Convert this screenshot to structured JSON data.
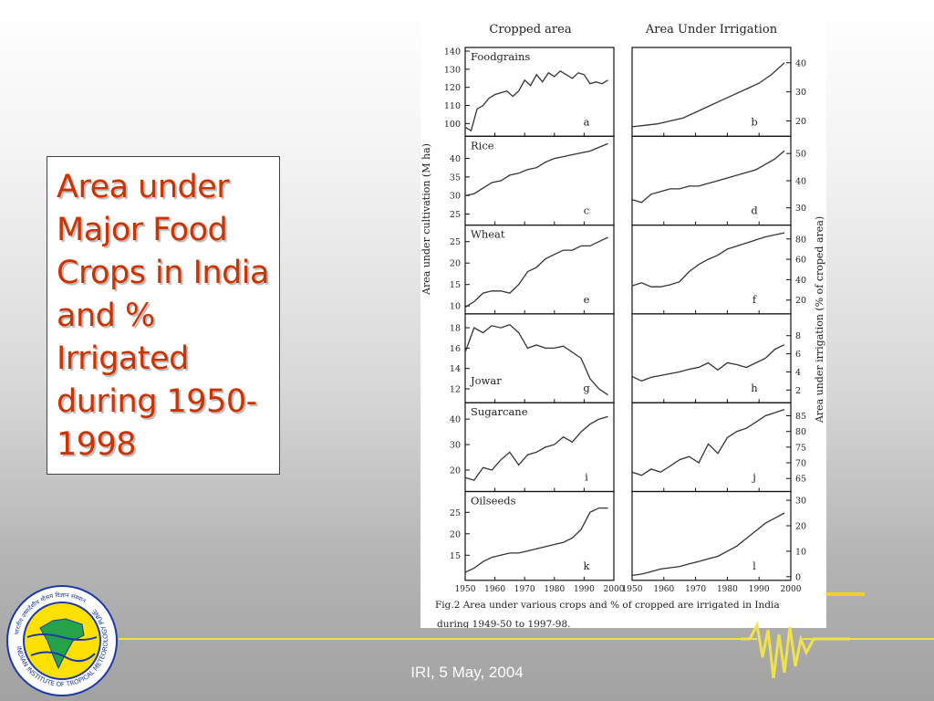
{
  "slide": {
    "title": "Area under Major Food Crops in India and % Irrigated during 1950-1998",
    "footer": "IRI, 5 May, 2004"
  },
  "figure": {
    "col_left_title": "Cropped area",
    "col_right_title": "Area Under Irrigation",
    "ylabel_left": "Area under cultivation (M ha)",
    "ylabel_right": "Area under irrigation (% of croped area)",
    "caption_line1": "Fig.2 Area under various crops and % of cropped are irrigated in India",
    "caption_line2": "during 1949-50 to 1997-98.",
    "x_ticks": [
      "1950",
      "1960",
      "1970",
      "1980",
      "1990",
      "2000"
    ]
  },
  "logo": {
    "text_ring": "INDIAN INSTITUTE OF TROPICAL METEOROLOGY PUNE",
    "hindi_ring": "भारतीय उष्णदेशीय मौसम विज्ञान संस्थान"
  },
  "colors": {
    "title": "#cc3300",
    "line": "#333333",
    "accent": "#f2e24a"
  },
  "chart_data": [
    {
      "type": "line",
      "panel": "a",
      "crop": "Foodgrains",
      "measure": "Cropped area",
      "ylabel": "Area under cultivation (M ha)",
      "ylim": [
        95,
        140
      ],
      "yticks": [
        100,
        110,
        120,
        130,
        140
      ],
      "x": [
        1950,
        1952,
        1954,
        1956,
        1958,
        1960,
        1962,
        1964,
        1966,
        1968,
        1970,
        1972,
        1974,
        1976,
        1978,
        1980,
        1982,
        1984,
        1986,
        1988,
        1990,
        1992,
        1994,
        1996,
        1998
      ],
      "values": [
        98,
        96,
        108,
        110,
        114,
        116,
        117,
        118,
        115,
        118,
        124,
        121,
        127,
        123,
        128,
        126,
        129,
        127,
        125,
        128,
        127,
        122,
        123,
        122,
        124
      ]
    },
    {
      "type": "line",
      "panel": "b",
      "crop": "Foodgrains",
      "measure": "Area under irrigation",
      "ylabel": "Area under irrigation (% of croped area)",
      "ylim": [
        16,
        44
      ],
      "yticks": [
        20,
        30,
        40
      ],
      "x": [
        1950,
        1954,
        1958,
        1962,
        1966,
        1970,
        1974,
        1978,
        1982,
        1986,
        1990,
        1994,
        1998
      ],
      "values": [
        18,
        18.5,
        19,
        20,
        21,
        23,
        25,
        27,
        29,
        31,
        33,
        36,
        40
      ]
    },
    {
      "type": "line",
      "panel": "c",
      "crop": "Rice",
      "measure": "Cropped area",
      "ylim": [
        23,
        45
      ],
      "yticks": [
        25,
        30,
        35,
        40
      ],
      "x": [
        1950,
        1953,
        1956,
        1959,
        1962,
        1965,
        1968,
        1971,
        1974,
        1977,
        1980,
        1983,
        1986,
        1989,
        1992,
        1995,
        1998
      ],
      "values": [
        30,
        30.5,
        32,
        33.5,
        34,
        35.5,
        36,
        37,
        37.5,
        39,
        40,
        40.5,
        41,
        41.5,
        42,
        43,
        44
      ]
    },
    {
      "type": "line",
      "panel": "d",
      "crop": "Rice",
      "measure": "Area under irrigation",
      "ylim": [
        25,
        55
      ],
      "yticks": [
        30,
        40,
        50
      ],
      "x": [
        1950,
        1953,
        1956,
        1959,
        1962,
        1965,
        1968,
        1971,
        1974,
        1977,
        1980,
        1983,
        1986,
        1989,
        1992,
        1995,
        1998
      ],
      "values": [
        33,
        32,
        35,
        36,
        37,
        37,
        38,
        38,
        39,
        40,
        41,
        42,
        43,
        44,
        46,
        48,
        51
      ]
    },
    {
      "type": "line",
      "panel": "e",
      "crop": "Wheat",
      "measure": "Cropped area",
      "ylim": [
        9,
        28
      ],
      "yticks": [
        10,
        15,
        20,
        25
      ],
      "x": [
        1950,
        1953,
        1956,
        1959,
        1962,
        1965,
        1968,
        1971,
        1974,
        1977,
        1980,
        1983,
        1986,
        1989,
        1992,
        1995,
        1998
      ],
      "values": [
        9.7,
        11,
        13,
        13.5,
        13.5,
        13,
        15,
        18,
        19,
        21,
        22,
        23,
        23,
        24,
        24,
        25,
        26
      ]
    },
    {
      "type": "line",
      "panel": "f",
      "crop": "Wheat",
      "measure": "Area under irrigation",
      "ylim": [
        10,
        90
      ],
      "yticks": [
        20,
        40,
        60,
        80
      ],
      "x": [
        1950,
        1953,
        1956,
        1959,
        1962,
        1965,
        1968,
        1971,
        1974,
        1977,
        1980,
        1983,
        1986,
        1989,
        1992,
        1995,
        1998
      ],
      "values": [
        34,
        37,
        33,
        33,
        35,
        38,
        48,
        55,
        60,
        64,
        70,
        73,
        76,
        79,
        82,
        84,
        86
      ]
    },
    {
      "type": "line",
      "panel": "g",
      "crop": "Jowar",
      "measure": "Cropped area",
      "ylim": [
        11,
        19
      ],
      "yticks": [
        12,
        14,
        16,
        18
      ],
      "x": [
        1950,
        1953,
        1956,
        1959,
        1962,
        1965,
        1968,
        1971,
        1974,
        1977,
        1980,
        1983,
        1986,
        1989,
        1992,
        1995,
        1998
      ],
      "values": [
        15.6,
        18,
        17.5,
        18.2,
        18,
        18.3,
        17.5,
        16,
        16.3,
        16,
        16,
        16.2,
        15.6,
        15,
        13,
        12,
        11.4
      ]
    },
    {
      "type": "line",
      "panel": "h",
      "crop": "Jowar",
      "measure": "Area under irrigation",
      "ylim": [
        1,
        10
      ],
      "yticks": [
        2,
        4,
        6,
        8
      ],
      "x": [
        1950,
        1953,
        1956,
        1959,
        1962,
        1965,
        1968,
        1971,
        1974,
        1977,
        1980,
        1983,
        1986,
        1989,
        1992,
        1995,
        1998
      ],
      "values": [
        3.5,
        3,
        3.4,
        3.6,
        3.8,
        4,
        4.3,
        4.5,
        5,
        4.2,
        5,
        4.8,
        4.5,
        5,
        5.5,
        6.5,
        7
      ]
    },
    {
      "type": "line",
      "panel": "i",
      "crop": "Sugarcane",
      "measure": "Cropped area",
      "ylim": [
        13,
        45
      ],
      "yticks": [
        20,
        30,
        40
      ],
      "x": [
        1950,
        1953,
        1956,
        1959,
        1962,
        1965,
        1968,
        1971,
        1974,
        1977,
        1980,
        1983,
        1986,
        1989,
        1992,
        1995,
        1998
      ],
      "values": [
        17,
        16,
        21,
        20,
        24,
        27,
        22,
        26,
        27,
        29,
        30,
        33,
        31,
        35,
        38,
        40,
        41
      ]
    },
    {
      "type": "line",
      "panel": "j",
      "crop": "Sugarcane",
      "measure": "Area under irrigation",
      "ylim": [
        62,
        88
      ],
      "yticks": [
        65,
        70,
        75,
        80,
        85
      ],
      "x": [
        1950,
        1953,
        1956,
        1959,
        1962,
        1965,
        1968,
        1971,
        1974,
        1977,
        1980,
        1983,
        1986,
        1989,
        1992,
        1995,
        1998
      ],
      "values": [
        67,
        66,
        68,
        67,
        69,
        71,
        72,
        70,
        76,
        73,
        78,
        80,
        81,
        83,
        85,
        86,
        87
      ]
    },
    {
      "type": "line",
      "panel": "k",
      "crop": "Oilseeds",
      "measure": "Cropped area",
      "ylim": [
        10,
        29
      ],
      "yticks": [
        15,
        20,
        25
      ],
      "x": [
        1950,
        1953,
        1956,
        1959,
        1962,
        1965,
        1968,
        1971,
        1974,
        1977,
        1980,
        1983,
        1986,
        1989,
        1992,
        1995,
        1998
      ],
      "values": [
        11,
        12,
        13.5,
        14.5,
        15,
        15.5,
        15.5,
        16,
        16.5,
        17,
        17.5,
        18,
        19,
        21,
        25,
        26,
        26
      ]
    },
    {
      "type": "line",
      "panel": "l",
      "crop": "Oilseeds",
      "measure": "Area under irrigation",
      "ylim": [
        0,
        32
      ],
      "yticks": [
        0,
        10,
        20,
        30
      ],
      "x": [
        1950,
        1953,
        1956,
        1959,
        1962,
        1965,
        1968,
        1971,
        1974,
        1977,
        1980,
        1983,
        1986,
        1989,
        1992,
        1995,
        1998
      ],
      "values": [
        0.5,
        1,
        2,
        3,
        3.5,
        4,
        5,
        6,
        7,
        8,
        10,
        12,
        15,
        18,
        21,
        23,
        25
      ]
    }
  ]
}
